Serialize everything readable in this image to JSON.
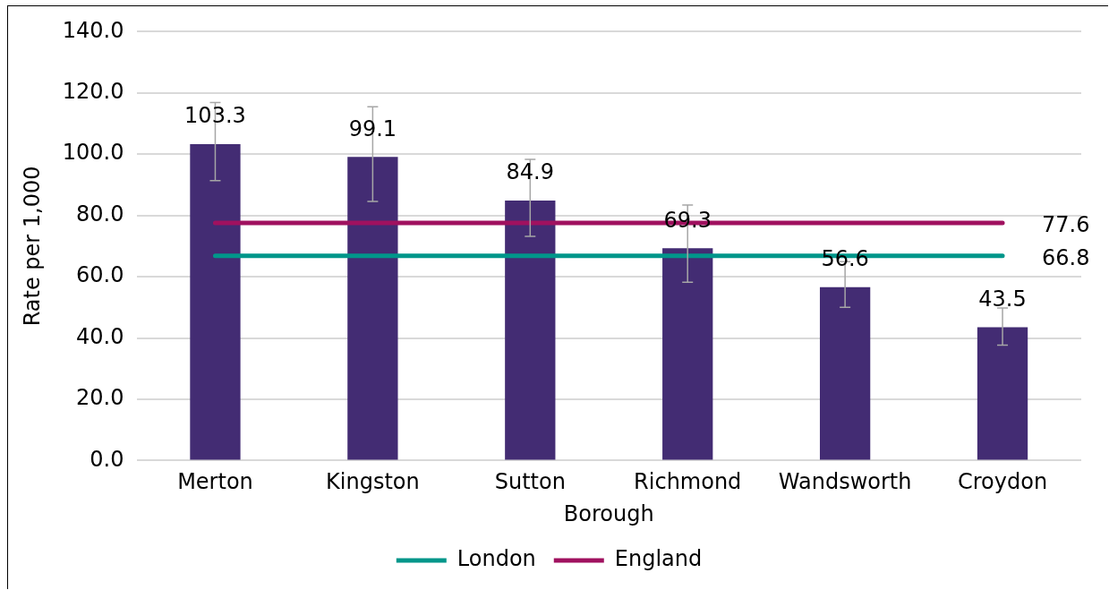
{
  "chart_data": {
    "type": "bar",
    "xlabel": "Borough",
    "ylabel": "Rate per 1,000",
    "categories": [
      "Merton",
      "Kingston",
      "Sutton",
      "Richmond",
      "Wandsworth",
      "Croydon"
    ],
    "series": [
      {
        "color": "#432c73",
        "values": [
          103.3,
          99.1,
          84.9,
          69.3,
          56.6,
          43.5
        ],
        "errors": [
          [
            91.4,
            116.9
          ],
          [
            84.6,
            115.5
          ],
          [
            73.2,
            98.3
          ],
          [
            58.2,
            83.4
          ],
          [
            50.0,
            64.9
          ],
          [
            37.7,
            49.8
          ]
        ],
        "value_labels": [
          "103.3",
          "99.1",
          "84.9",
          "69.3",
          "56.6",
          "43.5"
        ]
      },
      {
        "type": "line",
        "name": "London",
        "color": "#00968a",
        "values": [
          66.8,
          66.8,
          66.8,
          66.8,
          66.8,
          66.8
        ],
        "value_labels": [
          null,
          null,
          null,
          null,
          null,
          "66.8"
        ]
      },
      {
        "type": "line",
        "name": "England",
        "color": "#a0115f",
        "values": [
          77.6,
          77.6,
          77.6,
          77.6,
          77.6,
          77.6
        ],
        "value_labels": [
          null,
          null,
          null,
          null,
          null,
          "77.6"
        ]
      }
    ],
    "ylim": [
      0,
      140
    ],
    "yticks": [
      {
        "value": 0,
        "label": "0.0"
      },
      {
        "value": 20,
        "label": "20.0"
      },
      {
        "value": 40,
        "label": "40.0"
      },
      {
        "value": 60,
        "label": "60.0"
      },
      {
        "value": 80,
        "label": "80.0"
      },
      {
        "value": 100,
        "label": "100.0"
      },
      {
        "value": 120,
        "label": "120.0"
      },
      {
        "value": 140,
        "label": "140.0"
      }
    ],
    "grid": "y",
    "legend": "bottom",
    "marker": "none"
  }
}
